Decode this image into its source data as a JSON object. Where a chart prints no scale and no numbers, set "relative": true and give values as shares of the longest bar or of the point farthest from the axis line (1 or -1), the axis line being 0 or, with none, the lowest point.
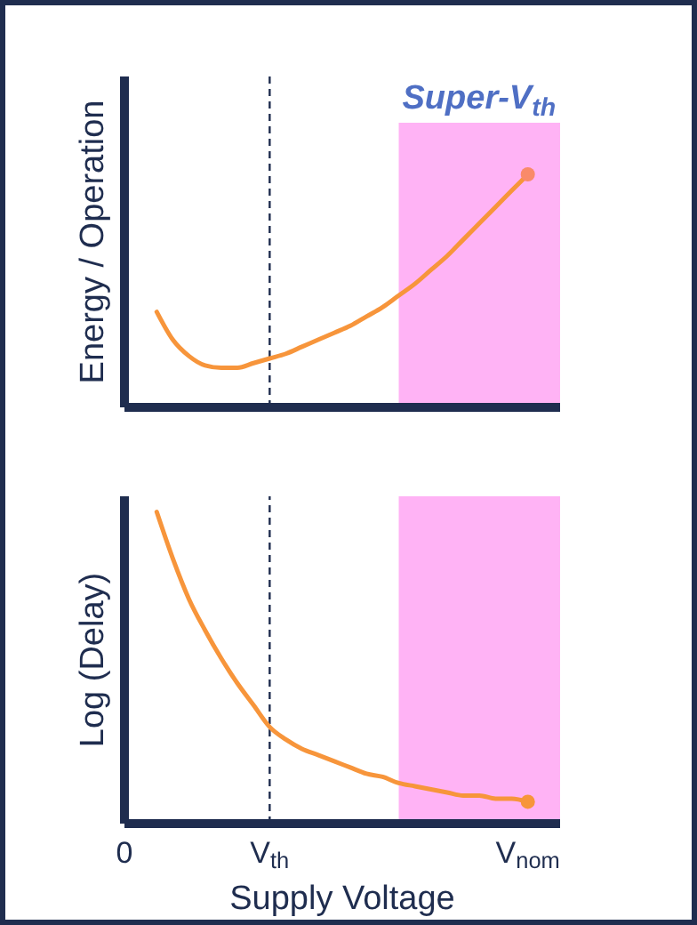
{
  "chart_data": [
    {
      "type": "line",
      "ylabel": "Energy / Operation",
      "relative": true,
      "tick_labels": false,
      "categories": [
        "0",
        null,
        null,
        null,
        null,
        null,
        null,
        null,
        null,
        "V$_{th}$",
        null,
        null,
        null,
        null,
        null,
        null,
        null,
        null,
        null,
        null,
        null,
        null,
        null,
        null,
        null,
        "V$_{nom}$",
        null,
        null
      ],
      "series": [
        {
          "type": "line",
          "color": "#f7953b",
          "values": [
            null,
            null,
            0.41,
            0.29,
            0.22,
            0.18,
            0.17,
            0.17,
            0.19,
            0.21,
            0.23,
            0.26,
            0.29,
            0.32,
            0.35,
            0.39,
            0.43,
            0.48,
            0.53,
            0.59,
            0.65,
            0.72,
            0.79,
            0.86,
            0.93,
            1,
            null,
            null
          ]
        },
        {
          "type": "scatter",
          "color": "#f98a6a",
          "values": [
            null,
            null,
            null,
            null,
            null,
            null,
            null,
            null,
            null,
            null,
            null,
            null,
            null,
            null,
            null,
            null,
            null,
            null,
            null,
            null,
            null,
            null,
            null,
            null,
            null,
            1,
            null,
            null
          ]
        }
      ],
      "ref_lines": [
        {
          "axis": "x",
          "value": "V$_{th}$",
          "color": "#1f2d4f",
          "line_style": "dashed"
        }
      ],
      "annotations": [
        "Super-V$_{th}$"
      ]
    },
    {
      "type": "line",
      "ylabel": "Log (Delay)",
      "xlabel": "Supply Voltage",
      "relative": true,
      "tick_labels": "x",
      "categories": [
        "0",
        null,
        null,
        null,
        null,
        null,
        null,
        null,
        null,
        "V$_{th}$",
        null,
        null,
        null,
        null,
        null,
        null,
        null,
        null,
        null,
        null,
        null,
        null,
        null,
        null,
        null,
        "V$_{nom}$",
        null,
        null
      ],
      "series": [
        {
          "type": "line",
          "color": "#f7953b",
          "values": [
            null,
            null,
            1,
            0.85,
            0.72,
            0.62,
            0.53,
            0.45,
            0.38,
            0.31,
            0.27,
            0.24,
            0.22,
            0.2,
            0.18,
            0.16,
            0.15,
            0.13,
            0.12,
            0.11,
            0.1,
            0.09,
            0.09,
            0.08,
            0.08,
            0.07,
            null,
            null
          ]
        },
        {
          "type": "scatter",
          "color": "#f7953b",
          "values": [
            null,
            null,
            null,
            null,
            null,
            null,
            null,
            null,
            null,
            null,
            null,
            null,
            null,
            null,
            null,
            null,
            null,
            null,
            null,
            null,
            null,
            null,
            null,
            null,
            null,
            0.07,
            null,
            null
          ]
        }
      ],
      "ref_lines": [
        {
          "axis": "x",
          "value": "V$_{th}$",
          "color": "#1f2d4f",
          "line_style": "dashed"
        }
      ]
    }
  ]
}
